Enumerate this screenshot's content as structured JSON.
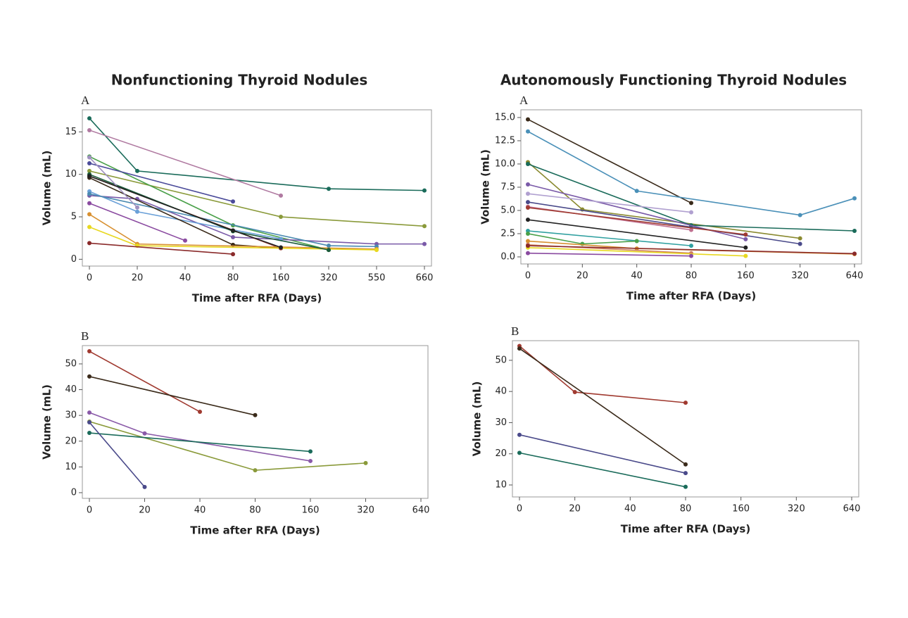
{
  "chart_data": [
    {
      "type": "line",
      "title": "Nonfunctioning Thyroid Nodules",
      "label": "A",
      "x_label": "Time after RFA (Days)",
      "y_label": "Volume (mL)",
      "categories": [
        "0",
        "20",
        "40",
        "80",
        "160",
        "320",
        "550",
        "660"
      ],
      "ylim": [
        -0.8,
        17.6
      ],
      "yticks": [
        0,
        5,
        10,
        15
      ],
      "series": [
        {
          "color": "#1a6b5a",
          "x": [
            "0",
            "20",
            "320",
            "660"
          ],
          "values": [
            16.6,
            10.4,
            8.3,
            8.1
          ]
        },
        {
          "color": "#b07aa1",
          "x": [
            "0",
            "160"
          ],
          "values": [
            15.2,
            7.5
          ]
        },
        {
          "color": "#8a9a3a",
          "x": [
            "0",
            "160",
            "660"
          ],
          "values": [
            10.4,
            5.0,
            3.9
          ]
        },
        {
          "color": "#4aa04a",
          "x": [
            "0",
            "80",
            "320"
          ],
          "values": [
            12.1,
            4.0,
            1.1
          ]
        },
        {
          "color": "#4b4b9a",
          "x": [
            "0",
            "80"
          ],
          "values": [
            11.3,
            6.8
          ]
        },
        {
          "color": "#7a5aa8",
          "x": [
            "0",
            "20",
            "80",
            "550",
            "660"
          ],
          "values": [
            7.5,
            7.1,
            2.6,
            1.8,
            1.8
          ]
        },
        {
          "color": "#6aa0d8",
          "x": [
            "0",
            "20",
            "160"
          ],
          "values": [
            8.0,
            5.6,
            2.4
          ]
        },
        {
          "color": "#4a8ab0",
          "x": [
            "0",
            "320",
            "550"
          ],
          "values": [
            7.7,
            1.6,
            1.5
          ]
        },
        {
          "color": "#3a2a1a",
          "x": [
            "0",
            "80",
            "160"
          ],
          "values": [
            9.6,
            1.7,
            1.3
          ]
        },
        {
          "color": "#a03a30",
          "x": [
            "0",
            "160"
          ],
          "values": [
            9.8,
            1.3
          ]
        },
        {
          "color": "#8a4aa0",
          "x": [
            "0",
            "40"
          ],
          "values": [
            6.6,
            2.2
          ]
        },
        {
          "color": "#d89030",
          "x": [
            "0",
            "20",
            "550"
          ],
          "values": [
            5.3,
            1.8,
            1.2
          ]
        },
        {
          "color": "#e8d820",
          "x": [
            "0",
            "20",
            "550"
          ],
          "values": [
            3.8,
            1.6,
            1.1
          ]
        },
        {
          "color": "#8a2a2a",
          "x": [
            "0",
            "80"
          ],
          "values": [
            1.9,
            0.6
          ]
        },
        {
          "color": "#1a5a3a",
          "x": [
            "0",
            "80",
            "320"
          ],
          "values": [
            10.0,
            3.3,
            1.1
          ]
        },
        {
          "color": "#a090c0",
          "x": [
            "0",
            "20"
          ],
          "values": [
            12.0,
            6.1
          ]
        },
        {
          "color": "#222222",
          "x": [
            "0",
            "80",
            "160"
          ],
          "values": [
            9.8,
            3.4,
            1.4
          ]
        }
      ]
    },
    {
      "type": "line",
      "label": "B",
      "x_label": "Time after RFA (Days)",
      "y_label": "Volume (mL)",
      "categories": [
        "0",
        "20",
        "40",
        "80",
        "160",
        "320",
        "640"
      ],
      "ylim": [
        -2.2,
        57.1
      ],
      "yticks": [
        0,
        10,
        20,
        30,
        40,
        50
      ],
      "series": [
        {
          "color": "#a03a30",
          "x": [
            "0",
            "40"
          ],
          "values": [
            54.9,
            31.4
          ]
        },
        {
          "color": "#3a2a1a",
          "x": [
            "0",
            "80"
          ],
          "values": [
            45.1,
            30.1
          ]
        },
        {
          "color": "#8a5aa8",
          "x": [
            "0",
            "20",
            "160"
          ],
          "values": [
            31.1,
            23.0,
            12.3
          ]
        },
        {
          "color": "#8a9a3a",
          "x": [
            "0",
            "80",
            "320"
          ],
          "values": [
            27.6,
            8.7,
            11.5
          ]
        },
        {
          "color": "#1a6b5a",
          "x": [
            "0",
            "160"
          ],
          "values": [
            23.2,
            16.0
          ]
        },
        {
          "color": "#4a4a8a",
          "x": [
            "0",
            "20"
          ],
          "values": [
            27.3,
            2.2
          ]
        }
      ]
    },
    {
      "type": "line",
      "title": "Autonomously Functioning Thyroid Nodules",
      "label": "A",
      "x_label": "Time after RFA (Days)",
      "y_label": "Volume (mL)",
      "categories": [
        "0",
        "20",
        "40",
        "80",
        "160",
        "320",
        "640"
      ],
      "ylim": [
        -0.76,
        15.83
      ],
      "yticks": [
        {
          "value": 0,
          "label": "0.0"
        },
        2.5,
        {
          "value": 5,
          "label": "5.0"
        },
        7.5,
        {
          "value": 10,
          "label": "10.0"
        },
        12.5,
        {
          "value": 15,
          "label": "15.0"
        }
      ],
      "series": [
        {
          "color": "#3a2a1a",
          "x": [
            "0",
            "80"
          ],
          "values": [
            14.8,
            5.8
          ]
        },
        {
          "color": "#4a90b8",
          "x": [
            "0",
            "40",
            "320",
            "640"
          ],
          "values": [
            13.5,
            7.1,
            4.5,
            6.3
          ]
        },
        {
          "color": "#8a8a30",
          "x": [
            "0",
            "20",
            "320"
          ],
          "values": [
            10.2,
            5.1,
            2.0
          ]
        },
        {
          "color": "#1a6b5a",
          "x": [
            "0",
            "80",
            "640"
          ],
          "values": [
            10.0,
            3.4,
            2.8
          ]
        },
        {
          "color": "#7a5aa8",
          "x": [
            "0",
            "160"
          ],
          "values": [
            7.8,
            1.9
          ]
        },
        {
          "color": "#b0a0d0",
          "x": [
            "0",
            "80"
          ],
          "values": [
            6.8,
            4.8
          ]
        },
        {
          "color": "#4a4a8a",
          "x": [
            "0",
            "320"
          ],
          "values": [
            5.9,
            1.4
          ]
        },
        {
          "color": "#c07090",
          "x": [
            "0",
            "80"
          ],
          "values": [
            5.4,
            2.9
          ]
        },
        {
          "color": "#a03a30",
          "x": [
            "0",
            "160"
          ],
          "values": [
            5.3,
            2.4
          ]
        },
        {
          "color": "#222222",
          "x": [
            "0",
            "160"
          ],
          "values": [
            4.0,
            1.0
          ]
        },
        {
          "color": "#30a0a0",
          "x": [
            "0",
            "80"
          ],
          "values": [
            2.8,
            1.2
          ]
        },
        {
          "color": "#4aa04a",
          "x": [
            "0",
            "20",
            "40"
          ],
          "values": [
            2.5,
            1.4,
            1.7
          ]
        },
        {
          "color": "#d89030",
          "x": [
            "0",
            "40",
            "640"
          ],
          "values": [
            1.7,
            0.9,
            0.3
          ]
        },
        {
          "color": "#d08060",
          "x": [
            "0",
            "80"
          ],
          "values": [
            1.3,
            0.4
          ]
        },
        {
          "color": "#e8d820",
          "x": [
            "0",
            "160"
          ],
          "values": [
            1.0,
            0.1
          ]
        },
        {
          "color": "#8a4aa0",
          "x": [
            "0",
            "80"
          ],
          "values": [
            0.4,
            0.1
          ]
        },
        {
          "color": "#8a2a2a",
          "x": [
            "0",
            "640"
          ],
          "values": [
            1.2,
            0.35
          ]
        }
      ]
    },
    {
      "type": "line",
      "label": "B",
      "x_label": "Time after RFA (Days)",
      "y_label": "Volume (mL)",
      "categories": [
        "0",
        "20",
        "40",
        "80",
        "160",
        "320",
        "640"
      ],
      "ylim": [
        6.16,
        56.3
      ],
      "yticks": [
        10,
        20,
        30,
        40,
        50
      ],
      "series": [
        {
          "color": "#a03a30",
          "x": [
            "0",
            "20",
            "80"
          ],
          "values": [
            54.6,
            39.8,
            36.4
          ]
        },
        {
          "color": "#3a2a1a",
          "x": [
            "0",
            "80"
          ],
          "values": [
            53.8,
            16.6
          ]
        },
        {
          "color": "#4a4a8a",
          "x": [
            "0",
            "80"
          ],
          "values": [
            26.1,
            13.8
          ]
        },
        {
          "color": "#1a6b5a",
          "x": [
            "0",
            "80"
          ],
          "values": [
            20.3,
            9.4
          ]
        }
      ]
    }
  ]
}
